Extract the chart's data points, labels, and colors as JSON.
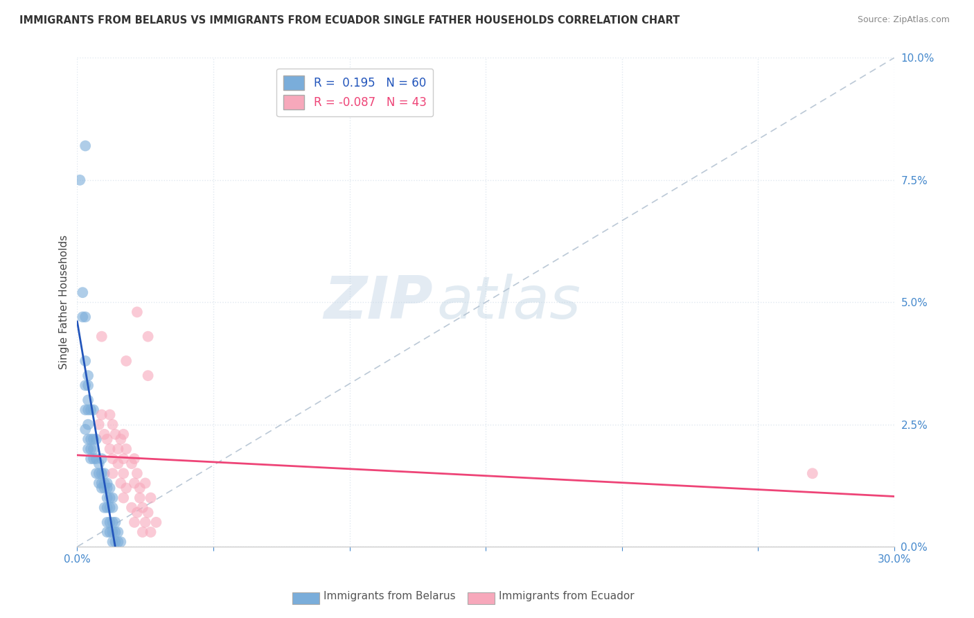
{
  "title": "IMMIGRANTS FROM BELARUS VS IMMIGRANTS FROM ECUADOR SINGLE FATHER HOUSEHOLDS CORRELATION CHART",
  "source": "Source: ZipAtlas.com",
  "ylabel": "Single Father Households",
  "legend1_label": "Immigrants from Belarus",
  "legend2_label": "Immigrants from Ecuador",
  "R_belarus": 0.195,
  "N_belarus": 60,
  "R_ecuador": -0.087,
  "N_ecuador": 43,
  "color_belarus": "#7aadda",
  "color_ecuador": "#f7a8bb",
  "line_color_belarus": "#2255bb",
  "line_color_ecuador": "#ee4477",
  "background_color": "#ffffff",
  "grid_color": "#e0e8f0",
  "watermark_zip": "ZIP",
  "watermark_atlas": "atlas",
  "xlim": [
    0.0,
    0.3
  ],
  "ylim": [
    0.0,
    0.1
  ],
  "belarus_points": [
    [
      0.001,
      0.075
    ],
    [
      0.003,
      0.082
    ],
    [
      0.002,
      0.052
    ],
    [
      0.003,
      0.047
    ],
    [
      0.002,
      0.047
    ],
    [
      0.003,
      0.038
    ],
    [
      0.004,
      0.035
    ],
    [
      0.003,
      0.033
    ],
    [
      0.004,
      0.033
    ],
    [
      0.003,
      0.028
    ],
    [
      0.004,
      0.028
    ],
    [
      0.004,
      0.03
    ],
    [
      0.005,
      0.028
    ],
    [
      0.006,
      0.028
    ],
    [
      0.004,
      0.025
    ],
    [
      0.003,
      0.024
    ],
    [
      0.004,
      0.022
    ],
    [
      0.005,
      0.022
    ],
    [
      0.006,
      0.022
    ],
    [
      0.007,
      0.022
    ],
    [
      0.004,
      0.02
    ],
    [
      0.005,
      0.02
    ],
    [
      0.006,
      0.02
    ],
    [
      0.005,
      0.018
    ],
    [
      0.006,
      0.018
    ],
    [
      0.007,
      0.018
    ],
    [
      0.008,
      0.017
    ],
    [
      0.009,
      0.018
    ],
    [
      0.007,
      0.015
    ],
    [
      0.008,
      0.015
    ],
    [
      0.009,
      0.015
    ],
    [
      0.01,
      0.015
    ],
    [
      0.008,
      0.013
    ],
    [
      0.009,
      0.013
    ],
    [
      0.01,
      0.013
    ],
    [
      0.011,
      0.013
    ],
    [
      0.009,
      0.012
    ],
    [
      0.01,
      0.012
    ],
    [
      0.011,
      0.012
    ],
    [
      0.012,
      0.012
    ],
    [
      0.011,
      0.01
    ],
    [
      0.012,
      0.01
    ],
    [
      0.013,
      0.01
    ],
    [
      0.01,
      0.008
    ],
    [
      0.011,
      0.008
    ],
    [
      0.012,
      0.008
    ],
    [
      0.013,
      0.008
    ],
    [
      0.011,
      0.005
    ],
    [
      0.012,
      0.005
    ],
    [
      0.013,
      0.005
    ],
    [
      0.014,
      0.005
    ],
    [
      0.011,
      0.003
    ],
    [
      0.012,
      0.003
    ],
    [
      0.013,
      0.003
    ],
    [
      0.014,
      0.003
    ],
    [
      0.015,
      0.003
    ],
    [
      0.013,
      0.001
    ],
    [
      0.014,
      0.001
    ],
    [
      0.015,
      0.001
    ],
    [
      0.016,
      0.001
    ]
  ],
  "ecuador_points": [
    [
      0.009,
      0.027
    ],
    [
      0.012,
      0.027
    ],
    [
      0.008,
      0.025
    ],
    [
      0.013,
      0.025
    ],
    [
      0.01,
      0.023
    ],
    [
      0.014,
      0.023
    ],
    [
      0.017,
      0.023
    ],
    [
      0.011,
      0.022
    ],
    [
      0.016,
      0.022
    ],
    [
      0.012,
      0.02
    ],
    [
      0.015,
      0.02
    ],
    [
      0.018,
      0.02
    ],
    [
      0.013,
      0.018
    ],
    [
      0.017,
      0.018
    ],
    [
      0.021,
      0.018
    ],
    [
      0.015,
      0.017
    ],
    [
      0.02,
      0.017
    ],
    [
      0.013,
      0.015
    ],
    [
      0.017,
      0.015
    ],
    [
      0.022,
      0.015
    ],
    [
      0.016,
      0.013
    ],
    [
      0.021,
      0.013
    ],
    [
      0.025,
      0.013
    ],
    [
      0.018,
      0.012
    ],
    [
      0.023,
      0.012
    ],
    [
      0.017,
      0.01
    ],
    [
      0.023,
      0.01
    ],
    [
      0.027,
      0.01
    ],
    [
      0.02,
      0.008
    ],
    [
      0.024,
      0.008
    ],
    [
      0.022,
      0.007
    ],
    [
      0.026,
      0.007
    ],
    [
      0.021,
      0.005
    ],
    [
      0.025,
      0.005
    ],
    [
      0.029,
      0.005
    ],
    [
      0.024,
      0.003
    ],
    [
      0.027,
      0.003
    ],
    [
      0.022,
      0.048
    ],
    [
      0.009,
      0.043
    ],
    [
      0.026,
      0.043
    ],
    [
      0.018,
      0.038
    ],
    [
      0.026,
      0.035
    ],
    [
      0.27,
      0.015
    ]
  ]
}
